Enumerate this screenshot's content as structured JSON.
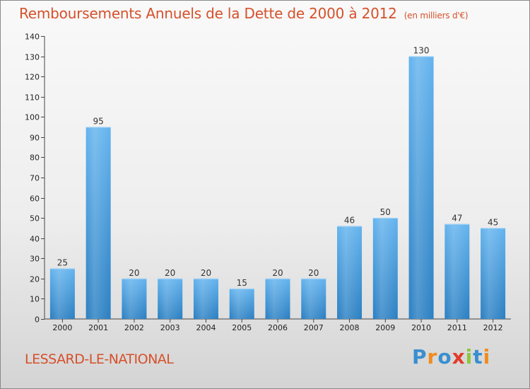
{
  "header": {
    "title": "Remboursements Annuels de la Dette de 2000 à 2012",
    "unit": "(en milliers d'€)"
  },
  "footer": {
    "commune": "LESSARD-LE-NATIONAL",
    "logo": "Proxiti",
    "logo_letters": [
      {
        "ch": "P",
        "color": "#3a8fd0"
      },
      {
        "ch": "r",
        "color": "#f08c1e"
      },
      {
        "ch": "o",
        "color": "#3a8fd0"
      },
      {
        "ch": "x",
        "color": "#e23b2a"
      },
      {
        "ch": "i",
        "color": "#8cc63f"
      },
      {
        "ch": "t",
        "color": "#3a8fd0"
      },
      {
        "ch": "i",
        "color": "#f08c1e"
      }
    ]
  },
  "chart_data": {
    "type": "bar",
    "title": "Remboursements Annuels de la Dette de 2000 à 2012",
    "ylabel": "en milliers d'€",
    "xlabel": "",
    "categories": [
      "2000",
      "2001",
      "2002",
      "2003",
      "2004",
      "2005",
      "2006",
      "2007",
      "2008",
      "2009",
      "2010",
      "2011",
      "2012"
    ],
    "values": [
      25,
      95,
      20,
      20,
      20,
      15,
      20,
      20,
      46,
      50,
      130,
      47,
      45
    ],
    "ylim": [
      0,
      140
    ],
    "yticks": [
      0,
      10,
      20,
      30,
      40,
      50,
      60,
      70,
      80,
      90,
      100,
      110,
      120,
      130,
      140
    ],
    "grid": false,
    "bar_color_top": "#63b3ee",
    "bar_color_bottom": "#2a7fc2"
  }
}
